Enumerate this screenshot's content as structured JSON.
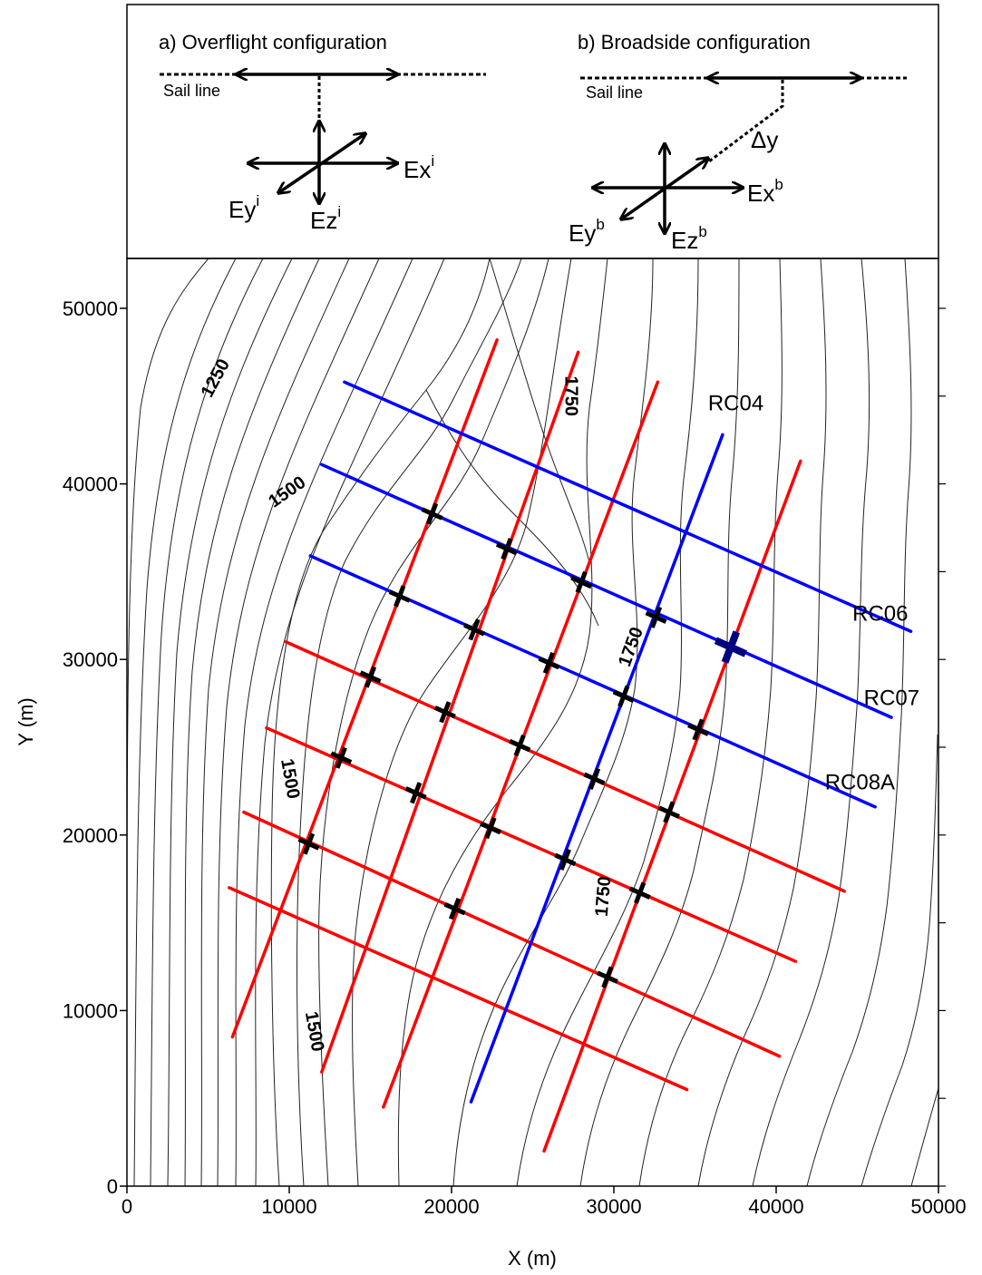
{
  "inset": {
    "overflight": {
      "title": "a) Overflight configuration",
      "sail_line_label": "Sail line",
      "ex": {
        "base": "Ex",
        "sup": "i"
      },
      "ey": {
        "base": "Ey",
        "sup": "i"
      },
      "ez": {
        "base": "Ez",
        "sup": "i"
      }
    },
    "broadside": {
      "title": "b) Broadside configuration",
      "sail_line_label": "Sail line",
      "offset_label": "Δy",
      "ex": {
        "base": "Ex",
        "sup": "b"
      },
      "ey": {
        "base": "Ey",
        "sup": "b"
      },
      "ez": {
        "base": "Ez",
        "sup": "b"
      }
    }
  },
  "map": {
    "x_axis": {
      "title": "X (m)",
      "ticks": [
        0,
        10000,
        20000,
        30000,
        40000,
        50000
      ],
      "tick_labels": [
        "0",
        "10000",
        "20000",
        "30000",
        "40000",
        "50000"
      ]
    },
    "y_axis": {
      "title": "Y (m)",
      "ticks": [
        0,
        10000,
        20000,
        30000,
        40000,
        50000
      ],
      "tick_labels": [
        "0",
        "10000",
        "20000",
        "30000",
        "40000",
        "50000"
      ]
    },
    "contour_labels": [
      {
        "text": "1250",
        "x": 5500,
        "y": 46000,
        "angle": -62
      },
      {
        "text": "1500",
        "x": 9900,
        "y": 39500,
        "angle": -35
      },
      {
        "text": "1750",
        "x": 27300,
        "y": 45000,
        "angle": 90
      },
      {
        "text": "1750",
        "x": 31100,
        "y": 30700,
        "angle": -70
      },
      {
        "text": "1500",
        "x": 10000,
        "y": 23200,
        "angle": 80
      },
      {
        "text": "1750",
        "x": 29400,
        "y": 16500,
        "angle": -85
      },
      {
        "text": "1500",
        "x": 11500,
        "y": 8800,
        "angle": 80
      }
    ],
    "survey_lines": [
      {
        "color": "#ff0000",
        "x1": 6500,
        "y1": 8500,
        "x2": 22800,
        "y2": 48200
      },
      {
        "color": "#ff0000",
        "x1": 12000,
        "y1": 6500,
        "x2": 27800,
        "y2": 47500
      },
      {
        "color": "#ff0000",
        "x1": 15800,
        "y1": 4500,
        "x2": 32700,
        "y2": 45800
      },
      {
        "color": "#ff0000",
        "x1": 25700,
        "y1": 2000,
        "x2": 41500,
        "y2": 41300
      },
      {
        "color": "#ff0000",
        "x1": 9800,
        "y1": 31000,
        "x2": 44200,
        "y2": 16800
      },
      {
        "color": "#ff0000",
        "x1": 8600,
        "y1": 26100,
        "x2": 41200,
        "y2": 12800
      },
      {
        "color": "#ff0000",
        "x1": 7200,
        "y1": 21300,
        "x2": 40200,
        "y2": 7400
      },
      {
        "color": "#ff0000",
        "x1": 6300,
        "y1": 17000,
        "x2": 34500,
        "y2": 5500
      },
      {
        "color": "#0000ff",
        "x1": 13400,
        "y1": 45800,
        "x2": 48300,
        "y2": 31600
      },
      {
        "color": "#0000ff",
        "x1": 12000,
        "y1": 41100,
        "x2": 47100,
        "y2": 26700
      },
      {
        "color": "#0000ff",
        "x1": 11300,
        "y1": 35900,
        "x2": 46100,
        "y2": 21600
      },
      {
        "color": "#0000ff",
        "x1": 21200,
        "y1": 4800,
        "x2": 36700,
        "y2": 42800
      }
    ],
    "line_labels": [
      {
        "text": "RC04",
        "x": 35800,
        "y": 44200
      },
      {
        "text": "RC06",
        "x": 44700,
        "y": 32200
      },
      {
        "text": "RC07",
        "x": 45400,
        "y": 27400
      },
      {
        "text": "RC08A",
        "x": 43000,
        "y": 22600
      }
    ],
    "receivers": [
      {
        "x": 18800,
        "y": 38300
      },
      {
        "x": 23400,
        "y": 36300
      },
      {
        "x": 28000,
        "y": 34400
      },
      {
        "x": 32600,
        "y": 32400
      },
      {
        "x": 16800,
        "y": 33600
      },
      {
        "x": 21400,
        "y": 31700
      },
      {
        "x": 26000,
        "y": 29800
      },
      {
        "x": 30600,
        "y": 27900
      },
      {
        "x": 35200,
        "y": 26000
      },
      {
        "x": 15000,
        "y": 29000
      },
      {
        "x": 19600,
        "y": 27000
      },
      {
        "x": 24200,
        "y": 25100
      },
      {
        "x": 28800,
        "y": 23200
      },
      {
        "x": 33400,
        "y": 21300
      },
      {
        "x": 13200,
        "y": 24400
      },
      {
        "x": 17800,
        "y": 22400
      },
      {
        "x": 22400,
        "y": 20400
      },
      {
        "x": 27000,
        "y": 18600
      },
      {
        "x": 31600,
        "y": 16700
      },
      {
        "x": 11200,
        "y": 19500
      },
      {
        "x": 20200,
        "y": 15800
      },
      {
        "x": 29600,
        "y": 11900
      }
    ],
    "highlighted_receiver": {
      "x": 37200,
      "y": 30700,
      "color": "#000080"
    }
  }
}
